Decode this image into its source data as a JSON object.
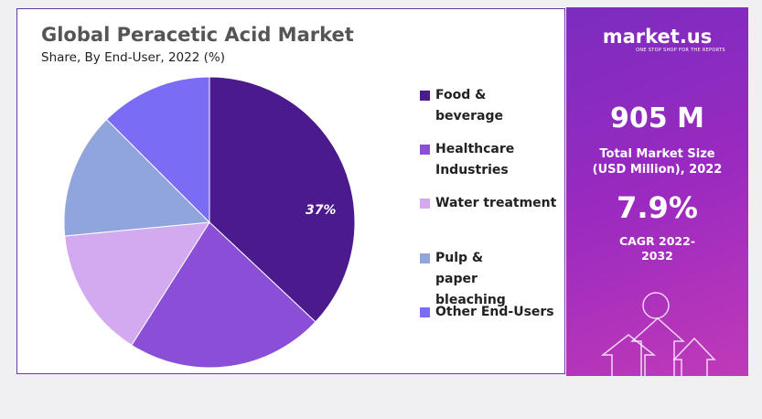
{
  "chart_data": {
    "type": "pie",
    "title": "Global Peracetic Acid Market",
    "subtitle": "Share, By End-User, 2022 (%)",
    "categories": [
      "Food & beverage",
      "Healthcare Industries",
      "Water treatment",
      "Pulp & paper bleaching",
      "Other End-Users"
    ],
    "values": [
      37,
      22,
      14.5,
      14,
      12.5
    ],
    "value_labels": [
      "37%",
      null,
      null,
      null,
      null
    ],
    "colors": [
      "#4b1a8c",
      "#8a4fd6",
      "#d3a9ef",
      "#8fa5dc",
      "#7a6cf5"
    ],
    "legend": "right"
  },
  "sidebar": {
    "brand": "market.us",
    "tagline": "ONE STOP SHOP FOR THE REPORTS",
    "market_size": "905 M",
    "market_size_label": "Total Market Size (USD Million), 2022",
    "cagr": "7.9%",
    "cagr_label": "CAGR 2022-2032"
  }
}
